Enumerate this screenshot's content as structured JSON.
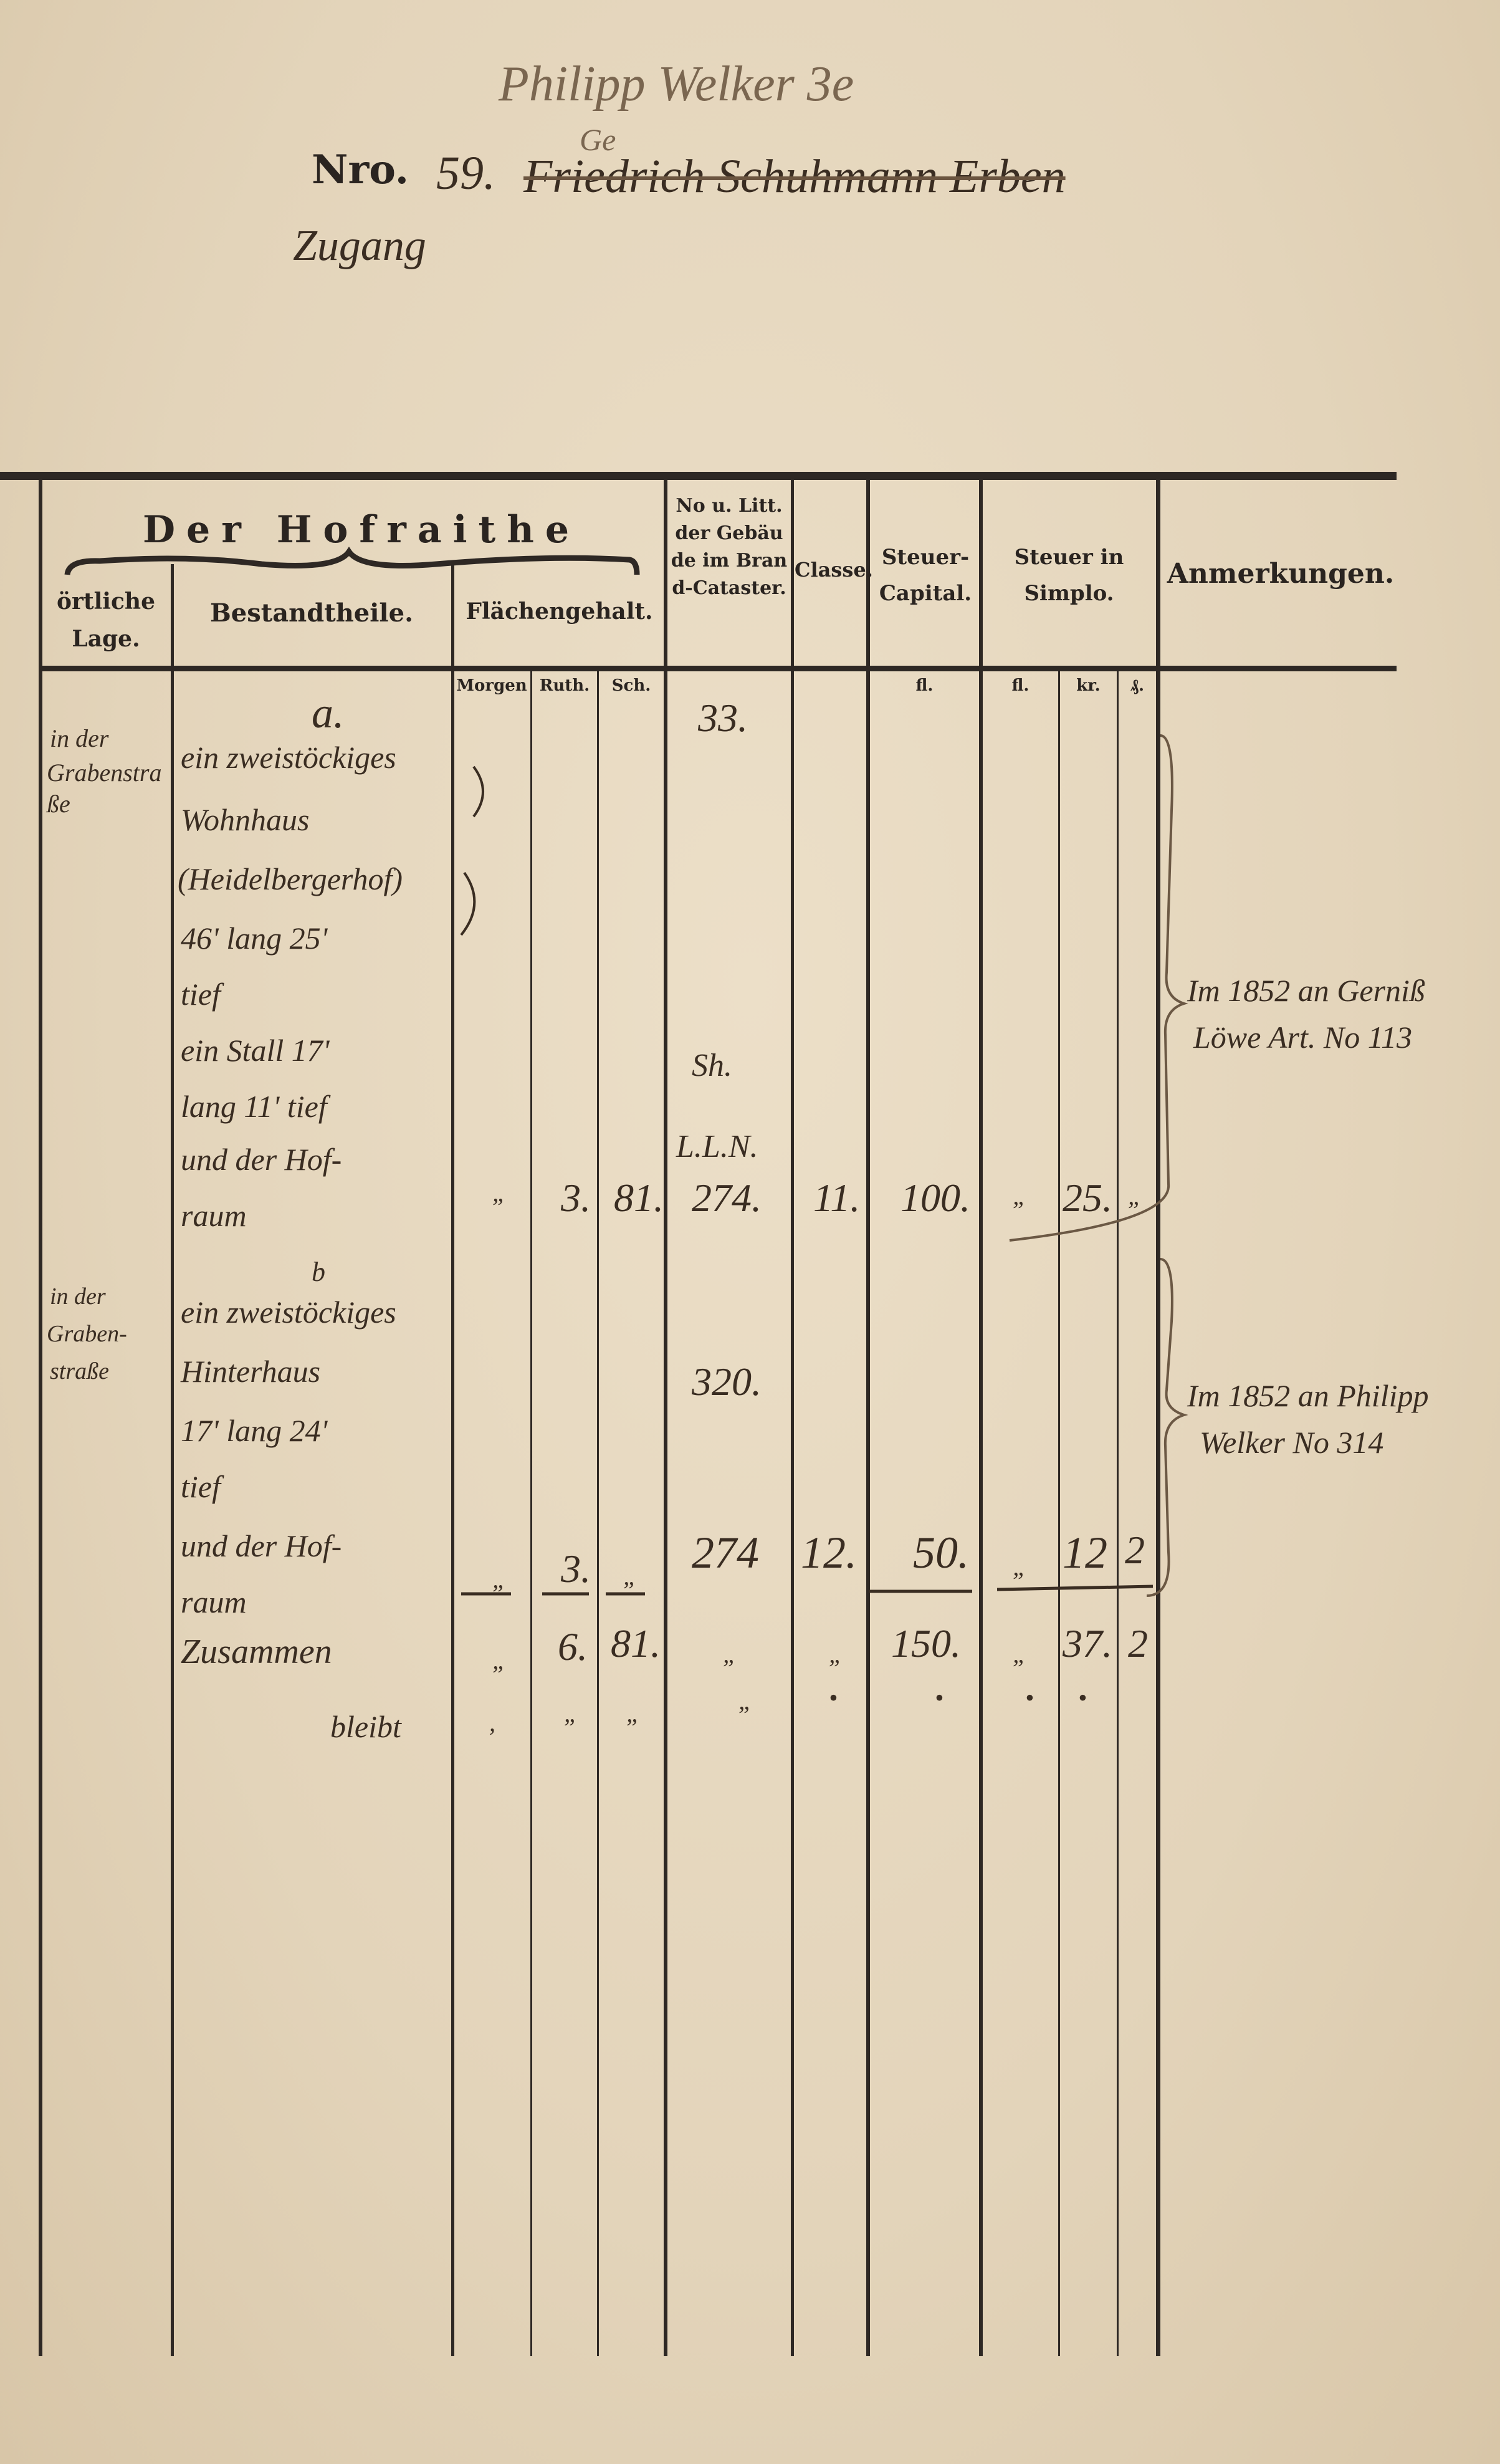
{
  "header": {
    "above_line_note": "Philipp Welker 3e",
    "above_line_insert": "Ge",
    "number_label": "Nro.",
    "number_value": "59.",
    "struck_name": "Friedrich Schuhmann Erben",
    "entry_type": "Zugang"
  },
  "table": {
    "group_header": "Der Hofraithe",
    "columns": {
      "lage": "örtliche Lage.",
      "bestandtheile": "Bestandtheile.",
      "flaechengehalt": "Flächengehalt.",
      "brand": "No u. Litt. der Gebäude im Brand-Cataster.",
      "classe": "Classe.",
      "capital": "Steuer-Capital.",
      "simplo": "Steuer in Simplo.",
      "anmerkungen": "Anmerkungen."
    },
    "subheaders": {
      "morgen": "Morgen",
      "ruth": "Ruth.",
      "sch": "Sch.",
      "capital_fl": "fl.",
      "simplo_fl": "fl.",
      "simplo_kr": "kr.",
      "simplo_pf": "₰."
    },
    "entries": [
      {
        "marker": "a.",
        "lage": [
          "in der",
          "Grabenstraße"
        ],
        "lines": [
          "ein zweistöckiges",
          "Wohnhaus",
          "(Heidelbergerhof)",
          "46' lang 25'",
          "tief",
          "ein Stall 17'",
          "lang 11' tief",
          "und der Hof-",
          "raum"
        ],
        "brand_notes": [
          "33.",
          "Sh.",
          "L.L.N."
        ],
        "morgen": "„",
        "ruth": "3.",
        "sch": "81.",
        "brand": "274.",
        "classe": "11.",
        "capital": "100.",
        "fl": "„",
        "kr": "25.",
        "pf": "„",
        "remark": [
          "Im 1852 an Gerniß",
          "Löwe Art. No 113"
        ]
      },
      {
        "marker": "b",
        "lage": [
          "in der",
          "Graben-",
          "straße"
        ],
        "lines": [
          "ein zweistöckiges",
          "Hinterhaus",
          "17' lang 24'",
          "tief",
          "und der Hof-",
          "raum"
        ],
        "brand_notes": [
          "320."
        ],
        "morgen": "„",
        "ruth": "3.",
        "sch": "„",
        "brand": "274",
        "classe": "12.",
        "capital": "50.",
        "fl": "„",
        "kr": "12",
        "pf": "2",
        "remark": [
          "Im 1852 an Philipp",
          "Welker No 314"
        ]
      }
    ],
    "total": {
      "label": "Zusammen",
      "morgen": "„",
      "ruth": "6.",
      "sch": "81.",
      "brand": "„",
      "classe": "„",
      "capital": "150.",
      "fl": "„",
      "kr": "37.",
      "pf": "2"
    },
    "remain": {
      "label": "bleibt",
      "morgen": ",",
      "ruth": "„",
      "sch": "„",
      "brand": "„",
      "classe": "•",
      "capital": "•",
      "fl": "•",
      "kr": "•"
    }
  }
}
